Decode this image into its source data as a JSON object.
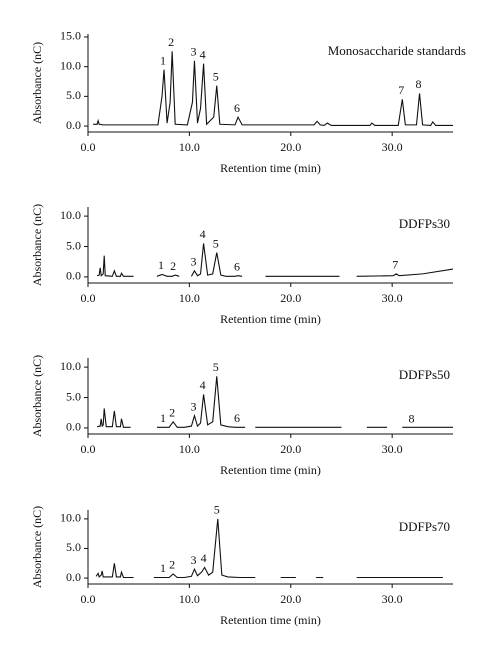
{
  "chart_data": [
    {
      "type": "line",
      "title": "Monosaccharide standards",
      "xlabel": "Retention time (min)",
      "ylabel": "Absorbance (nC)",
      "color": "#111111",
      "xlim": [
        0,
        36
      ],
      "xticks": [
        {
          "value": 0,
          "label": "0.0"
        },
        {
          "value": 10,
          "label": "10.0"
        },
        {
          "value": 20,
          "label": "20.0"
        },
        {
          "value": 30,
          "label": "30.0"
        }
      ],
      "ylim": [
        -1,
        15.5
      ],
      "yticks": [
        {
          "value": 0,
          "label": "0.0"
        },
        {
          "value": 5,
          "label": "5.0"
        },
        {
          "value": 10,
          "label": "10.0"
        },
        {
          "value": 15,
          "label": "15.0"
        }
      ],
      "x": [
        0.5,
        0.9,
        1.0,
        1.1,
        1.5,
        6.9,
        7.3,
        7.5,
        7.8,
        8.1,
        8.3,
        8.6,
        9.8,
        10.3,
        10.5,
        10.8,
        11.1,
        11.4,
        11.7,
        12.4,
        12.7,
        13.0,
        14.5,
        14.8,
        15.2,
        20,
        22.3,
        22.6,
        22.9,
        23.3,
        23.6,
        24,
        27.8,
        28,
        28.3,
        30.6,
        31,
        31.3,
        32.4,
        32.7,
        33,
        33.8,
        34,
        34.3,
        36
      ],
      "values": [
        0.3,
        0.3,
        0.9,
        0.3,
        0.2,
        0.2,
        5,
        9.5,
        0.5,
        4,
        12.6,
        0.3,
        0.2,
        4,
        11,
        0.5,
        3,
        10.5,
        0.3,
        1.5,
        6.8,
        0.3,
        0.2,
        1.5,
        0.2,
        0.2,
        0.2,
        0.8,
        0.2,
        0.1,
        0.5,
        0.1,
        0.1,
        0.5,
        0.1,
        0.1,
        4.5,
        0.2,
        0.2,
        5.5,
        0.2,
        0.1,
        0.7,
        0.1,
        0.1
      ],
      "peaks": [
        {
          "label": "1",
          "x": 7.5
        },
        {
          "label": "2",
          "x": 8.3
        },
        {
          "label": "3",
          "x": 10.5
        },
        {
          "label": "4",
          "x": 11.4
        },
        {
          "label": "5",
          "x": 12.7
        },
        {
          "label": "6",
          "x": 14.8
        },
        {
          "label": "7",
          "x": 31
        },
        {
          "label": "8",
          "x": 32.7
        }
      ]
    },
    {
      "type": "line",
      "title": "DDFPs30",
      "xlabel": "Retention time (min)",
      "ylabel": "Absorbance (nC)",
      "color": "#111111",
      "xlim": [
        0,
        36
      ],
      "xticks": [
        {
          "value": 0,
          "label": "0.0"
        },
        {
          "value": 10,
          "label": "10.0"
        },
        {
          "value": 20,
          "label": "20.0"
        },
        {
          "value": 30,
          "label": "30.0"
        }
      ],
      "ylim": [
        -1,
        11.5
      ],
      "yticks": [
        {
          "value": 0,
          "label": "0.0"
        },
        {
          "value": 5,
          "label": "5.0"
        },
        {
          "value": 10,
          "label": "10.0"
        }
      ],
      "x": [
        0.9,
        1.1,
        1.2,
        1.3,
        1.5,
        1.6,
        1.7,
        2.4,
        2.6,
        2.8,
        3.2,
        3.3,
        3.5,
        4.5,
        5,
        6.8,
        7.3,
        7.8,
        8.3,
        8.6,
        9.0,
        9.5,
        10.2,
        10.5,
        10.8,
        11.1,
        11.4,
        11.8,
        12.3,
        12.7,
        13.1,
        13.6,
        14.5,
        14.8,
        15.2,
        16,
        17.5,
        24.8,
        25.5,
        26.5,
        30.1,
        30.4,
        30.7,
        33,
        36
      ],
      "values": [
        0.2,
        0.3,
        1.5,
        0.2,
        0.5,
        3.5,
        0.2,
        0.1,
        1.0,
        0.1,
        0.1,
        0.6,
        0.1,
        0.1,
        null,
        0.1,
        0.4,
        0.1,
        0.1,
        0.3,
        0.1,
        null,
        0.1,
        1.0,
        0.2,
        0.5,
        5.5,
        0.3,
        0.5,
        4.0,
        0.3,
        0.1,
        0.1,
        0.2,
        0.1,
        null,
        0.1,
        0.1,
        null,
        0.1,
        0.2,
        0.5,
        0.2,
        0.5,
        1.3
      ],
      "peaks": [
        {
          "label": "1",
          "x": 7.3
        },
        {
          "label": "2",
          "x": 8.5
        },
        {
          "label": "3",
          "x": 10.5
        },
        {
          "label": "4",
          "x": 11.4
        },
        {
          "label": "5",
          "x": 12.7
        },
        {
          "label": "6",
          "x": 14.8
        },
        {
          "label": "7",
          "x": 30.4
        }
      ]
    },
    {
      "type": "line",
      "title": "DDFPs50",
      "xlabel": "Retention time (min)",
      "ylabel": "Absorbance (nC)",
      "color": "#111111",
      "xlim": [
        0,
        36
      ],
      "xticks": [
        {
          "value": 0,
          "label": "0.0"
        },
        {
          "value": 10,
          "label": "10.0"
        },
        {
          "value": 20,
          "label": "20.0"
        },
        {
          "value": 30,
          "label": "30.0"
        }
      ],
      "ylim": [
        -1,
        11.5
      ],
      "yticks": [
        {
          "value": 0,
          "label": "0.0"
        },
        {
          "value": 5,
          "label": "5.0"
        },
        {
          "value": 10,
          "label": "10.0"
        }
      ],
      "x": [
        0.9,
        1.2,
        1.3,
        1.4,
        1.5,
        1.6,
        1.8,
        2.4,
        2.6,
        2.8,
        3.2,
        3.3,
        3.5,
        4.2,
        5,
        6.8,
        7.5,
        8.0,
        8.4,
        8.8,
        9.5,
        10.2,
        10.5,
        10.8,
        11.1,
        11.4,
        11.8,
        12.3,
        12.7,
        13.1,
        13.8,
        14.5,
        15.5,
        16,
        16.5,
        25,
        26,
        27.5,
        29.5,
        30,
        31,
        36
      ],
      "values": [
        0.2,
        0.3,
        1.5,
        0.3,
        0.5,
        3.2,
        0.2,
        0.2,
        2.8,
        0.2,
        0.2,
        1.5,
        0.1,
        0.1,
        null,
        0.1,
        0.1,
        0.1,
        1.0,
        0.1,
        0.1,
        0.3,
        2.0,
        0.3,
        0.8,
        5.5,
        0.5,
        1.0,
        8.5,
        0.5,
        0.2,
        0.1,
        0.1,
        null,
        0.1,
        0.1,
        null,
        0.1,
        0.1,
        null,
        0.1,
        0.1
      ],
      "peaks": [
        {
          "label": "1",
          "x": 7.5
        },
        {
          "label": "2",
          "x": 8.4
        },
        {
          "label": "3",
          "x": 10.5
        },
        {
          "label": "4",
          "x": 11.4
        },
        {
          "label": "5",
          "x": 12.7
        },
        {
          "label": "6",
          "x": 14.8
        },
        {
          "label": "8",
          "x": 32
        }
      ]
    },
    {
      "type": "line",
      "title": "DDFPs70",
      "xlabel": "Retention time (min)",
      "ylabel": "Absorbance (nC)",
      "color": "#111111",
      "xlim": [
        0,
        36
      ],
      "xticks": [
        {
          "value": 0,
          "label": "0.0"
        },
        {
          "value": 10,
          "label": "10.0"
        },
        {
          "value": 20,
          "label": "20.0"
        },
        {
          "value": 30,
          "label": "30.0"
        }
      ],
      "ylim": [
        -1,
        11.5
      ],
      "yticks": [
        {
          "value": 0,
          "label": "0.0"
        },
        {
          "value": 5,
          "label": "5.0"
        },
        {
          "value": 10,
          "label": "10.0"
        }
      ],
      "x": [
        0.8,
        1.0,
        1.1,
        1.3,
        1.4,
        1.5,
        2.4,
        2.6,
        2.8,
        3.2,
        3.3,
        3.5,
        4.5,
        5,
        6.5,
        7.5,
        8.0,
        8.4,
        8.8,
        9.5,
        10.2,
        10.5,
        10.8,
        11.2,
        11.5,
        11.9,
        12.3,
        12.8,
        13.2,
        13.8,
        15,
        16.5,
        17,
        19,
        20.5,
        21,
        22.5,
        23.2,
        24,
        26.5,
        35
      ],
      "values": [
        0.3,
        0.8,
        0.2,
        0.5,
        1.2,
        0.2,
        0.2,
        2.5,
        0.2,
        0.2,
        1.0,
        0.1,
        0.1,
        null,
        0.1,
        0.1,
        0.1,
        0.7,
        0.1,
        0.1,
        0.3,
        1.5,
        0.4,
        1.0,
        1.8,
        0.5,
        1.0,
        10.0,
        0.5,
        0.2,
        0.1,
        0.1,
        null,
        0.1,
        0.1,
        null,
        0.1,
        0.1,
        null,
        0.1,
        0.1
      ],
      "peaks": [
        {
          "label": "1",
          "x": 7.5
        },
        {
          "label": "2",
          "x": 8.4
        },
        {
          "label": "3",
          "x": 10.5
        },
        {
          "label": "4",
          "x": 11.5
        },
        {
          "label": "5",
          "x": 12.8
        }
      ]
    }
  ]
}
